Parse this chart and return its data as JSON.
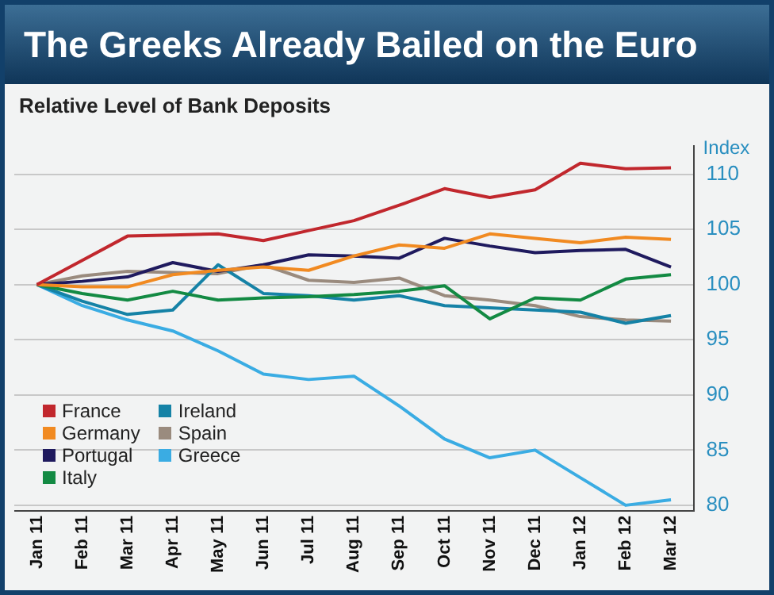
{
  "chart_data": {
    "type": "line",
    "title": "The Greeks Already Bailed on the Euro",
    "subtitle": "Relative Level of Bank Deposits",
    "ylabel": "Index",
    "categories": [
      "Jan 11",
      "Feb 11",
      "Mar 11",
      "Apr 11",
      "May 11",
      "Jun 11",
      "Jul 11",
      "Aug 11",
      "Sep 11",
      "Oct 11",
      "Nov 11",
      "Dec 11",
      "Jan 12",
      "Feb 12",
      "Mar 12"
    ],
    "series": [
      {
        "name": "France",
        "color": "#c1272d",
        "values": [
          100,
          102.2,
          104.4,
          104.5,
          104.6,
          104.0,
          104.9,
          105.8,
          107.2,
          108.7,
          107.9,
          108.6,
          111.0,
          110.5,
          110.6
        ]
      },
      {
        "name": "Germany",
        "color": "#f18a21",
        "values": [
          100,
          99.8,
          99.8,
          100.9,
          101.3,
          101.6,
          101.3,
          102.6,
          103.6,
          103.3,
          104.6,
          104.2,
          103.8,
          104.3,
          104.1
        ]
      },
      {
        "name": "Portugal",
        "color": "#1f1a5e",
        "values": [
          100,
          100.3,
          100.7,
          102.0,
          101.2,
          101.8,
          102.7,
          102.6,
          102.4,
          104.2,
          103.5,
          102.9,
          103.1,
          103.2,
          101.6
        ]
      },
      {
        "name": "Italy",
        "color": "#138a43",
        "values": [
          100,
          99.2,
          98.6,
          99.4,
          98.6,
          98.8,
          98.9,
          99.1,
          99.4,
          99.9,
          96.9,
          98.8,
          98.6,
          100.5,
          100.9
        ]
      },
      {
        "name": "Ireland",
        "color": "#1582a6",
        "values": [
          100,
          98.5,
          97.3,
          97.7,
          101.8,
          99.2,
          99.0,
          98.6,
          99.0,
          98.1,
          97.9,
          97.7,
          97.5,
          96.5,
          97.2
        ]
      },
      {
        "name": "Spain",
        "color": "#9a8b7e",
        "values": [
          100,
          100.8,
          101.2,
          101.1,
          101.0,
          101.8,
          100.4,
          100.2,
          100.6,
          99.0,
          98.6,
          98.1,
          97.1,
          96.8,
          96.7
        ]
      },
      {
        "name": "Greece",
        "color": "#3aace3",
        "values": [
          100,
          98.1,
          96.8,
          95.8,
          94.0,
          91.9,
          91.4,
          91.7,
          89.0,
          86.0,
          84.3,
          85.0,
          82.5,
          80.0,
          80.5
        ]
      }
    ],
    "ylim": [
      79.5,
      112.6
    ],
    "yticks": [
      80,
      85,
      90,
      95,
      100,
      105,
      110
    ],
    "grid": "y",
    "legend": "bottom left",
    "marker": "none",
    "line_style": "solid"
  }
}
